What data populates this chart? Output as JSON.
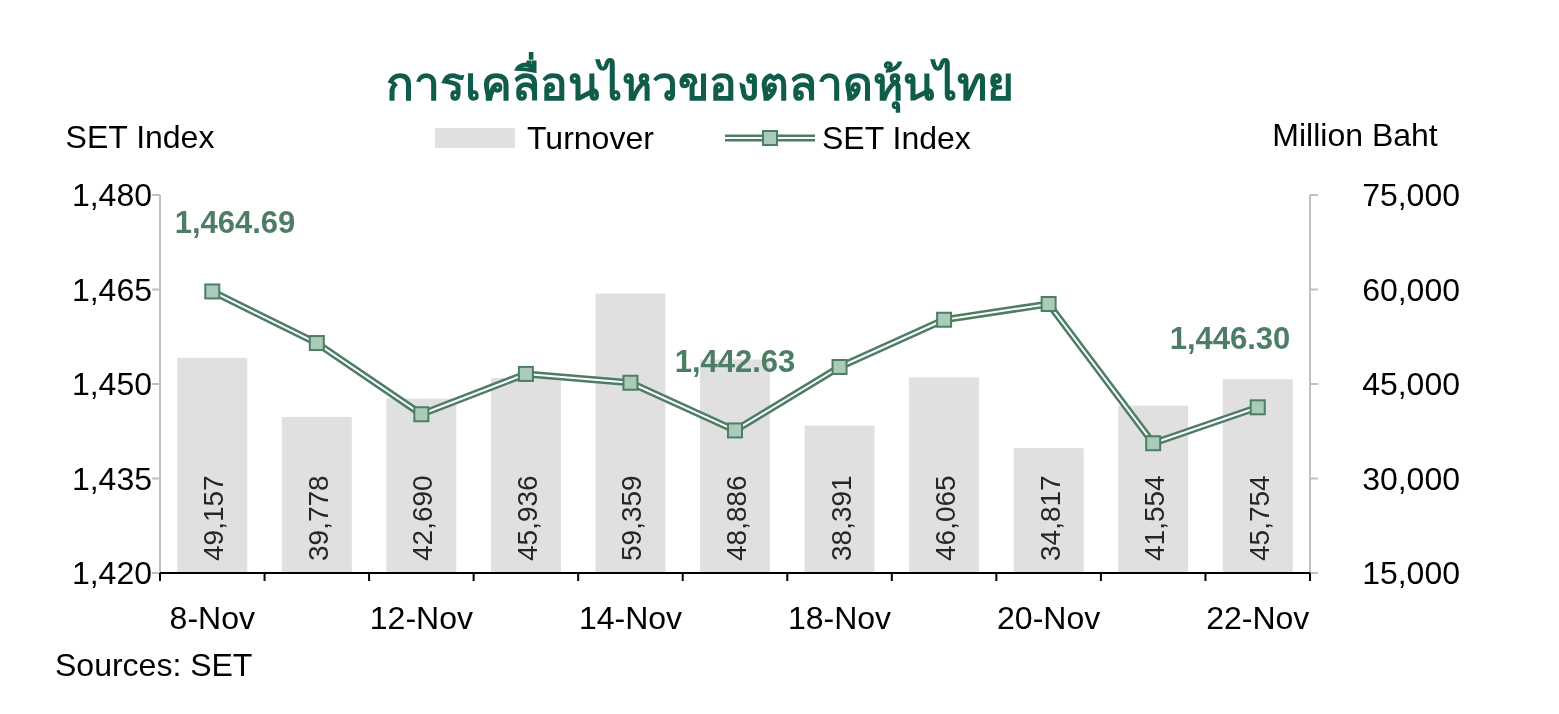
{
  "chart_data": {
    "type": "bar",
    "title": "การเคลื่อนไหวของตลาดหุ้นไทย",
    "ylabel": "SET Index",
    "y2label": "Million Baht",
    "annotations": [
      "Sources: SET"
    ],
    "categories": [
      "8-Nov",
      null,
      "12-Nov",
      null,
      "14-Nov",
      null,
      "18-Nov",
      null,
      "20-Nov",
      null,
      "22-Nov"
    ],
    "ylim": [
      1420,
      1480
    ],
    "yticks": [
      {
        "value": 1420,
        "label": "1,420"
      },
      {
        "value": 1435,
        "label": "1,435"
      },
      {
        "value": 1450,
        "label": "1,450"
      },
      {
        "value": 1465,
        "label": "1,465"
      },
      {
        "value": 1480,
        "label": "1,480"
      }
    ],
    "y2lim": [
      15000,
      75000
    ],
    "y2ticks": [
      {
        "value": 15000,
        "label": "15,000"
      },
      {
        "value": 30000,
        "label": "30,000"
      },
      {
        "value": 45000,
        "label": "45,000"
      },
      {
        "value": 60000,
        "label": "60,000"
      },
      {
        "value": 75000,
        "label": "75,000"
      }
    ],
    "grid": false,
    "legend": "top",
    "marker": "square",
    "series": [
      {
        "name": "Turnover",
        "axis": "y2",
        "color": "#e0e0e0",
        "values": [
          49157,
          39778,
          42690,
          45936,
          59359,
          48886,
          38391,
          46065,
          34817,
          41554,
          45754
        ],
        "value_labels": [
          "49,157",
          "39,778",
          "42,690",
          "45,936",
          "59,359",
          "48,886",
          "38,391",
          "46,065",
          "34,817",
          "41,554",
          "45,754"
        ]
      },
      {
        "name": "SET Index",
        "type": "line",
        "axis": "y",
        "color": "#4e7d66",
        "values": [
          1464.69,
          1456.5,
          1445.2,
          1451.6,
          1450.2,
          1442.63,
          1452.7,
          1460.2,
          1462.7,
          1440.6,
          1446.3
        ],
        "value_labels": [
          "1,464.69",
          null,
          null,
          null,
          null,
          "1,442.63",
          null,
          null,
          null,
          null,
          "1,446.30"
        ]
      }
    ]
  }
}
